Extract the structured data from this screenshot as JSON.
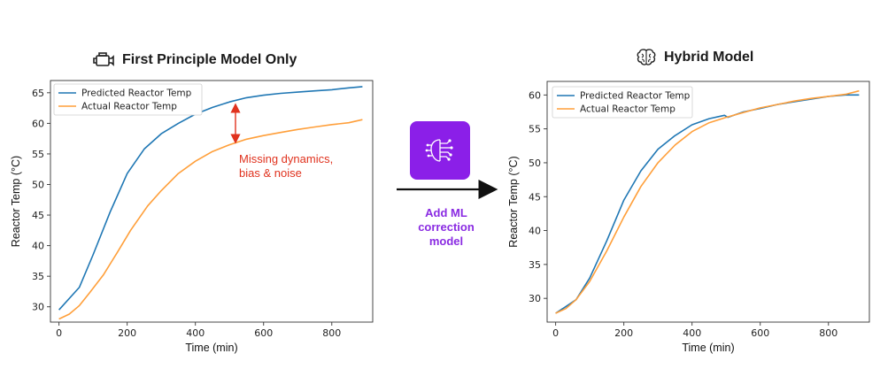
{
  "left_panel": {
    "title": "First Principle Model Only",
    "icon": "engine-icon",
    "annotation_line1": "Missing dynamics,",
    "annotation_line2": "bias & noise"
  },
  "right_panel": {
    "title": "Hybrid Model",
    "icon": "brain-icon"
  },
  "middle": {
    "label_line1": "Add ML",
    "label_line2": "correction",
    "label_line3": "model",
    "icon": "circuit-chip-icon",
    "accent": "#8b1fe8"
  },
  "colors": {
    "predicted": "#1f77b4",
    "actual": "#ff9f3a",
    "annotation": "#e0321e"
  },
  "chart_data": [
    {
      "type": "line",
      "title": "First Principle Model Only",
      "xlabel": "Time (min)",
      "ylabel": "Reactor Temp (°C)",
      "xlim": [
        -25,
        920
      ],
      "ylim": [
        27.5,
        67
      ],
      "xticks": [
        0,
        200,
        400,
        600,
        800
      ],
      "yticks": [
        30,
        35,
        40,
        45,
        50,
        55,
        60,
        65
      ],
      "legend": "top-left",
      "series": [
        {
          "name": "Predicted Reactor Temp",
          "x": [
            0,
            60,
            100,
            150,
            200,
            250,
            300,
            350,
            400,
            450,
            500,
            550,
            600,
            650,
            700,
            750,
            800,
            850,
            890
          ],
          "y": [
            29.5,
            33.2,
            38.5,
            45.5,
            51.8,
            55.8,
            58.3,
            60.0,
            61.5,
            62.6,
            63.5,
            64.2,
            64.6,
            64.9,
            65.1,
            65.3,
            65.5,
            65.8,
            66.0
          ]
        },
        {
          "name": "Actual Reactor Temp",
          "x": [
            0,
            30,
            60,
            90,
            130,
            170,
            210,
            260,
            300,
            350,
            400,
            450,
            500,
            550,
            600,
            650,
            700,
            750,
            800,
            850,
            890
          ],
          "y": [
            28.0,
            28.8,
            30.2,
            32.3,
            35.2,
            38.8,
            42.5,
            46.5,
            49.0,
            51.8,
            53.8,
            55.4,
            56.5,
            57.4,
            58.0,
            58.5,
            59.0,
            59.4,
            59.8,
            60.1,
            60.6
          ]
        }
      ]
    },
    {
      "type": "line",
      "title": "Hybrid Model",
      "xlabel": "Time (min)",
      "ylabel": "Reactor Temp (°C)",
      "xlim": [
        -25,
        920
      ],
      "ylim": [
        26.5,
        62
      ],
      "xticks": [
        0,
        200,
        400,
        600,
        800
      ],
      "yticks": [
        30,
        35,
        40,
        45,
        50,
        55,
        60
      ],
      "legend": "top-left",
      "series": [
        {
          "name": "Predicted Reactor Temp",
          "x": [
            0,
            30,
            60,
            100,
            150,
            200,
            250,
            300,
            350,
            400,
            450,
            495,
            505,
            550,
            600,
            650,
            700,
            750,
            800,
            850,
            890
          ],
          "y": [
            27.8,
            28.8,
            29.8,
            33.0,
            38.5,
            44.5,
            48.8,
            52.0,
            54.0,
            55.6,
            56.5,
            57.0,
            56.7,
            57.5,
            58.0,
            58.6,
            59.0,
            59.4,
            59.8,
            60.0,
            60.0
          ]
        },
        {
          "name": "Actual Reactor Temp",
          "x": [
            0,
            30,
            60,
            100,
            150,
            200,
            250,
            300,
            350,
            400,
            450,
            500,
            550,
            600,
            650,
            700,
            750,
            800,
            850,
            890
          ],
          "y": [
            27.8,
            28.5,
            29.8,
            32.5,
            37.0,
            42.0,
            46.5,
            50.0,
            52.6,
            54.6,
            55.9,
            56.7,
            57.4,
            58.1,
            58.6,
            59.1,
            59.5,
            59.8,
            60.1,
            60.6
          ]
        }
      ]
    }
  ]
}
